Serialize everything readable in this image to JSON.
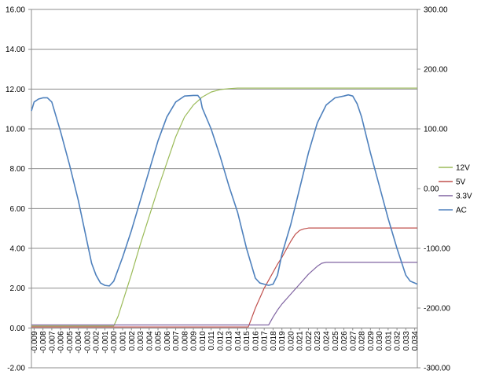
{
  "chart_data": {
    "type": "line",
    "title": "",
    "xlabel": "",
    "ylabel": "",
    "y2label": "",
    "grid": true,
    "legend_position": "right",
    "x_categories": [
      "-0.009",
      "-0.008",
      "-0.007",
      "-0.006",
      "-0.005",
      "-0.004",
      "-0.003",
      "-0.002",
      "-0.001",
      "-0.000",
      "0.001",
      "0.002",
      "0.003",
      "0.004",
      "0.005",
      "0.006",
      "0.007",
      "0.008",
      "0.009",
      "0.010",
      "0.011",
      "0.012",
      "0.013",
      "0.014",
      "0.015",
      "0.016",
      "0.017",
      "0.018",
      "0.019",
      "0.020",
      "0.021",
      "0.022",
      "0.023",
      "0.024",
      "0.025",
      "0.026",
      "0.027",
      "0.028",
      "0.029",
      "0.030",
      "0.031",
      "0.032",
      "0.033",
      "0.034"
    ],
    "xlim": [
      -0.0093,
      0.0343
    ],
    "y_primary": {
      "ylim": [
        -2,
        16
      ],
      "ticks": [
        -2,
        0,
        2,
        4,
        6,
        8,
        10,
        12,
        14,
        16
      ],
      "tick_labels": [
        "-2.00",
        "0.00",
        "2.00",
        "4.00",
        "6.00",
        "8.00",
        "10.00",
        "12.00",
        "14.00",
        "16.00"
      ]
    },
    "y_secondary": {
      "ylim": [
        -300,
        300
      ],
      "ticks": [
        -300,
        -200,
        -100,
        0,
        100,
        200,
        300
      ],
      "tick_labels": [
        "-300.00",
        "-200.00",
        "-100.00",
        "0.00",
        "100.00",
        "200.00",
        "300.00"
      ]
    },
    "series": [
      {
        "name": "12V",
        "axis": "primary",
        "color": "#9bbb59",
        "points": [
          [
            -0.0093,
            0.1
          ],
          [
            -0.0005,
            0.1
          ],
          [
            0.0,
            0.1
          ],
          [
            0.0005,
            0.6
          ],
          [
            0.001,
            1.3
          ],
          [
            0.0015,
            2.0
          ],
          [
            0.002,
            2.7
          ],
          [
            0.003,
            4.2
          ],
          [
            0.004,
            5.6
          ],
          [
            0.005,
            7.0
          ],
          [
            0.006,
            8.3
          ],
          [
            0.007,
            9.6
          ],
          [
            0.008,
            10.6
          ],
          [
            0.009,
            11.2
          ],
          [
            0.01,
            11.6
          ],
          [
            0.011,
            11.85
          ],
          [
            0.012,
            11.97
          ],
          [
            0.013,
            12.02
          ],
          [
            0.014,
            12.05
          ],
          [
            0.015,
            12.05
          ],
          [
            0.0343,
            12.05
          ]
        ]
      },
      {
        "name": "5V",
        "axis": "primary",
        "color": "#c0504d",
        "points": [
          [
            -0.0093,
            0.05
          ],
          [
            0.0152,
            0.05
          ],
          [
            0.0155,
            0.4
          ],
          [
            0.016,
            1.0
          ],
          [
            0.0165,
            1.5
          ],
          [
            0.017,
            2.0
          ],
          [
            0.0175,
            2.4
          ],
          [
            0.018,
            2.8
          ],
          [
            0.0185,
            3.2
          ],
          [
            0.019,
            3.55
          ],
          [
            0.0195,
            3.95
          ],
          [
            0.02,
            4.35
          ],
          [
            0.0205,
            4.7
          ],
          [
            0.021,
            4.9
          ],
          [
            0.0215,
            4.98
          ],
          [
            0.022,
            5.02
          ],
          [
            0.0343,
            5.02
          ]
        ]
      },
      {
        "name": "3.3V",
        "axis": "primary",
        "color": "#8064a2",
        "points": [
          [
            -0.0093,
            0.15
          ],
          [
            0.0175,
            0.15
          ],
          [
            0.018,
            0.55
          ],
          [
            0.0185,
            0.9
          ],
          [
            0.019,
            1.2
          ],
          [
            0.0195,
            1.45
          ],
          [
            0.02,
            1.7
          ],
          [
            0.021,
            2.2
          ],
          [
            0.022,
            2.7
          ],
          [
            0.023,
            3.1
          ],
          [
            0.0235,
            3.25
          ],
          [
            0.024,
            3.3
          ],
          [
            0.0343,
            3.3
          ]
        ]
      },
      {
        "name": "AC",
        "axis": "secondary",
        "color": "#4f81bd",
        "points": [
          [
            -0.0093,
            130
          ],
          [
            -0.009,
            145
          ],
          [
            -0.0085,
            150
          ],
          [
            -0.008,
            152
          ],
          [
            -0.0075,
            152
          ],
          [
            -0.007,
            145
          ],
          [
            -0.0065,
            120
          ],
          [
            -0.006,
            95
          ],
          [
            -0.005,
            40
          ],
          [
            -0.004,
            -20
          ],
          [
            -0.003,
            -90
          ],
          [
            -0.0025,
            -125
          ],
          [
            -0.002,
            -145
          ],
          [
            -0.0015,
            -158
          ],
          [
            -0.001,
            -162
          ],
          [
            -0.0005,
            -163
          ],
          [
            0.0,
            -155
          ],
          [
            0.0005,
            -135
          ],
          [
            0.001,
            -115
          ],
          [
            0.002,
            -70
          ],
          [
            0.003,
            -20
          ],
          [
            0.004,
            30
          ],
          [
            0.005,
            80
          ],
          [
            0.006,
            120
          ],
          [
            0.007,
            145
          ],
          [
            0.0075,
            150
          ],
          [
            0.008,
            155
          ],
          [
            0.009,
            156
          ],
          [
            0.0095,
            156
          ],
          [
            0.0098,
            150
          ],
          [
            0.01,
            135
          ],
          [
            0.011,
            100
          ],
          [
            0.012,
            55
          ],
          [
            0.013,
            5
          ],
          [
            0.014,
            -40
          ],
          [
            0.015,
            -100
          ],
          [
            0.016,
            -150
          ],
          [
            0.0165,
            -158
          ],
          [
            0.017,
            -160
          ],
          [
            0.0175,
            -162
          ],
          [
            0.018,
            -160
          ],
          [
            0.0185,
            -145
          ],
          [
            0.019,
            -110
          ],
          [
            0.02,
            -60
          ],
          [
            0.021,
            0
          ],
          [
            0.022,
            60
          ],
          [
            0.023,
            110
          ],
          [
            0.024,
            140
          ],
          [
            0.025,
            152
          ],
          [
            0.026,
            155
          ],
          [
            0.0265,
            157
          ],
          [
            0.027,
            155
          ],
          [
            0.0275,
            142
          ],
          [
            0.028,
            120
          ],
          [
            0.029,
            60
          ],
          [
            0.03,
            5
          ],
          [
            0.031,
            -50
          ],
          [
            0.032,
            -100
          ],
          [
            0.033,
            -145
          ],
          [
            0.0335,
            -155
          ],
          [
            0.034,
            -158
          ],
          [
            0.0343,
            -160
          ]
        ]
      }
    ]
  }
}
